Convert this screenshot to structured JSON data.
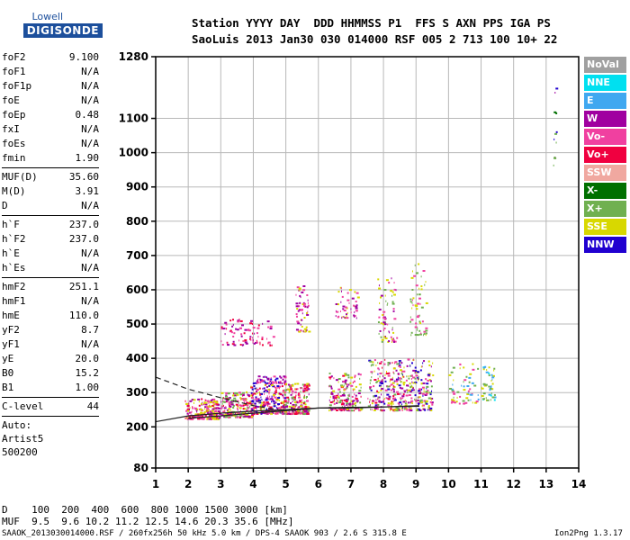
{
  "logo": {
    "line1": "Lowell",
    "line2": "DIGISONDE"
  },
  "header": {
    "row1": "Station YYYY DAY  DDD HHMMSS P1  FFS S AXN PPS IGA PS",
    "row2": "SaoLuis 2013 Jan30 030 014000 RSF 005 2 713 100 10+ 22"
  },
  "params": [
    [
      {
        "k": "foF2",
        "v": "9.100"
      },
      {
        "k": "foF1",
        "v": "N/A"
      },
      {
        "k": "foF1p",
        "v": "N/A"
      },
      {
        "k": "foE",
        "v": "N/A"
      },
      {
        "k": "foEp",
        "v": "0.48"
      },
      {
        "k": "fxI",
        "v": "N/A"
      },
      {
        "k": "foEs",
        "v": "N/A"
      },
      {
        "k": "fmin",
        "v": "1.90"
      }
    ],
    [
      {
        "k": "MUF(D)",
        "v": "35.60"
      },
      {
        "k": "M(D)",
        "v": "3.91"
      },
      {
        "k": "D",
        "v": "N/A"
      }
    ],
    [
      {
        "k": "h`F",
        "v": "237.0"
      },
      {
        "k": "h`F2",
        "v": "237.0"
      },
      {
        "k": "h`E",
        "v": "N/A"
      },
      {
        "k": "h`Es",
        "v": "N/A"
      }
    ],
    [
      {
        "k": "hmF2",
        "v": "251.1"
      },
      {
        "k": "hmF1",
        "v": "N/A"
      },
      {
        "k": "hmE",
        "v": "110.0"
      },
      {
        "k": "yF2",
        "v": "8.7"
      },
      {
        "k": "yF1",
        "v": "N/A"
      },
      {
        "k": "yE",
        "v": "20.0"
      },
      {
        "k": "B0",
        "v": "15.2"
      },
      {
        "k": "B1",
        "v": "1.00"
      }
    ],
    [
      {
        "k": "C-level",
        "v": "44"
      }
    ]
  ],
  "auto": {
    "l1": "Auto:",
    "l2": "Artist5",
    "l3": "500200"
  },
  "legend": [
    {
      "label": "NoVal",
      "color": "#a0a0a0"
    },
    {
      "label": "NNE",
      "color": "#00e0f0"
    },
    {
      "label": "E",
      "color": "#40a8f0"
    },
    {
      "label": "W",
      "color": "#a000a0"
    },
    {
      "label": "Vo-",
      "color": "#f040a0"
    },
    {
      "label": "Vo+",
      "color": "#f00040"
    },
    {
      "label": "SSW",
      "color": "#f0a8a0"
    },
    {
      "label": "X-",
      "color": "#007000"
    },
    {
      "label": "X+",
      "color": "#70b050"
    },
    {
      "label": "SSE",
      "color": "#d8d800"
    },
    {
      "label": "NNW",
      "color": "#2000d0"
    }
  ],
  "dist_table": {
    "row1": "D    100  200  400  600  800 1000 1500 3000 [km]",
    "row2": "MUF  9.5  9.6 10.2 11.2 12.5 14.6 20.3 35.6 [MHz]"
  },
  "footer": {
    "left": "SAAOK_2013030014000.RSF / 260fx256h 50 kHz 5.0 km / DPS-4 SAAOK 903 / 2.6 S 315.8 E",
    "right": "Ion2Png 1.3.17"
  },
  "chart_data": {
    "type": "scatter",
    "xlim": [
      1,
      14
    ],
    "ylim": [
      80,
      1280
    ],
    "xticks": [
      1,
      2,
      3,
      4,
      5,
      6,
      7,
      8,
      9,
      10,
      11,
      12,
      13,
      14
    ],
    "yticks": [
      80,
      200,
      300,
      400,
      500,
      600,
      700,
      800,
      900,
      1000,
      1100,
      1280
    ],
    "clusters": [
      {
        "x": [
          1.9,
          2.95
        ],
        "y": [
          225,
          285
        ],
        "n": 220,
        "colors": [
          "#f040a0",
          "#f00040",
          "#a000a0",
          "#d8d800"
        ]
      },
      {
        "x": [
          3.0,
          3.95
        ],
        "y": [
          230,
          305
        ],
        "n": 200,
        "colors": [
          "#f040a0",
          "#f00040",
          "#a000a0",
          "#d8d800",
          "#70b050"
        ]
      },
      {
        "x": [
          3.9,
          4.95
        ],
        "y": [
          240,
          330
        ],
        "n": 230,
        "colors": [
          "#f040a0",
          "#f00040",
          "#a000a0",
          "#2000d0",
          "#d8d800"
        ]
      },
      {
        "x": [
          4.0,
          5.0
        ],
        "y": [
          330,
          350
        ],
        "n": 60,
        "colors": [
          "#a000a0",
          "#2000d0",
          "#f040a0"
        ]
      },
      {
        "x": [
          4.9,
          5.7
        ],
        "y": [
          240,
          330
        ],
        "n": 200,
        "colors": [
          "#f040a0",
          "#f00040",
          "#d8d800",
          "#a000a0",
          "#70b050"
        ]
      },
      {
        "x": [
          3.0,
          4.6
        ],
        "y": [
          440,
          520
        ],
        "n": 90,
        "colors": [
          "#a000a0",
          "#f040a0",
          "#f00040"
        ]
      },
      {
        "x": [
          5.3,
          5.7
        ],
        "y": [
          480,
          620
        ],
        "n": 60,
        "colors": [
          "#a000a0",
          "#f040a0",
          "#d8d800"
        ]
      },
      {
        "x": [
          6.3,
          7.3
        ],
        "y": [
          250,
          360
        ],
        "n": 170,
        "colors": [
          "#f040a0",
          "#f00040",
          "#a000a0",
          "#d8d800",
          "#70b050"
        ]
      },
      {
        "x": [
          6.5,
          7.2
        ],
        "y": [
          520,
          610
        ],
        "n": 50,
        "colors": [
          "#a000a0",
          "#d8d800",
          "#f040a0"
        ]
      },
      {
        "x": [
          7.5,
          8.7
        ],
        "y": [
          250,
          400
        ],
        "n": 240,
        "colors": [
          "#f040a0",
          "#f00040",
          "#a000a0",
          "#d8d800",
          "#70b050",
          "#2000d0"
        ]
      },
      {
        "x": [
          7.8,
          8.4
        ],
        "y": [
          450,
          640
        ],
        "n": 70,
        "colors": [
          "#a000a0",
          "#d8d800",
          "#f040a0",
          "#70b050"
        ]
      },
      {
        "x": [
          8.7,
          9.5
        ],
        "y": [
          250,
          400
        ],
        "n": 160,
        "colors": [
          "#d8d800",
          "#f040a0",
          "#a000a0",
          "#70b050",
          "#2000d0"
        ]
      },
      {
        "x": [
          8.8,
          9.3
        ],
        "y": [
          470,
          680
        ],
        "n": 60,
        "colors": [
          "#d8d800",
          "#70b050",
          "#f040a0"
        ]
      },
      {
        "x": [
          10.0,
          10.9
        ],
        "y": [
          270,
          390
        ],
        "n": 60,
        "colors": [
          "#d8d800",
          "#70b050",
          "#f040a0",
          "#40a8f0"
        ]
      },
      {
        "x": [
          11.0,
          11.4
        ],
        "y": [
          280,
          380
        ],
        "n": 45,
        "colors": [
          "#40a8f0",
          "#00e0f0",
          "#d8d800",
          "#70b050"
        ]
      },
      {
        "x": [
          13.2,
          13.3
        ],
        "y": [
          960,
          1190
        ],
        "n": 12,
        "colors": [
          "#70b050",
          "#007000",
          "#2000d0",
          "#a000a0"
        ]
      }
    ],
    "curves": [
      {
        "style": "solid",
        "x": [
          1,
          2,
          3,
          4,
          5,
          6,
          7,
          8,
          9.1
        ],
        "y": [
          215,
          232,
          240,
          246,
          250,
          255,
          255,
          258,
          262
        ]
      },
      {
        "style": "solid",
        "x": [
          2,
          3,
          4,
          5,
          6,
          7,
          8,
          9.1
        ],
        "y": [
          225,
          232,
          240,
          247,
          255,
          257,
          258,
          260
        ]
      },
      {
        "style": "dashed",
        "x": [
          1,
          2,
          3,
          4,
          4.9
        ],
        "y": [
          345,
          310,
          285,
          262,
          248
        ]
      }
    ]
  }
}
